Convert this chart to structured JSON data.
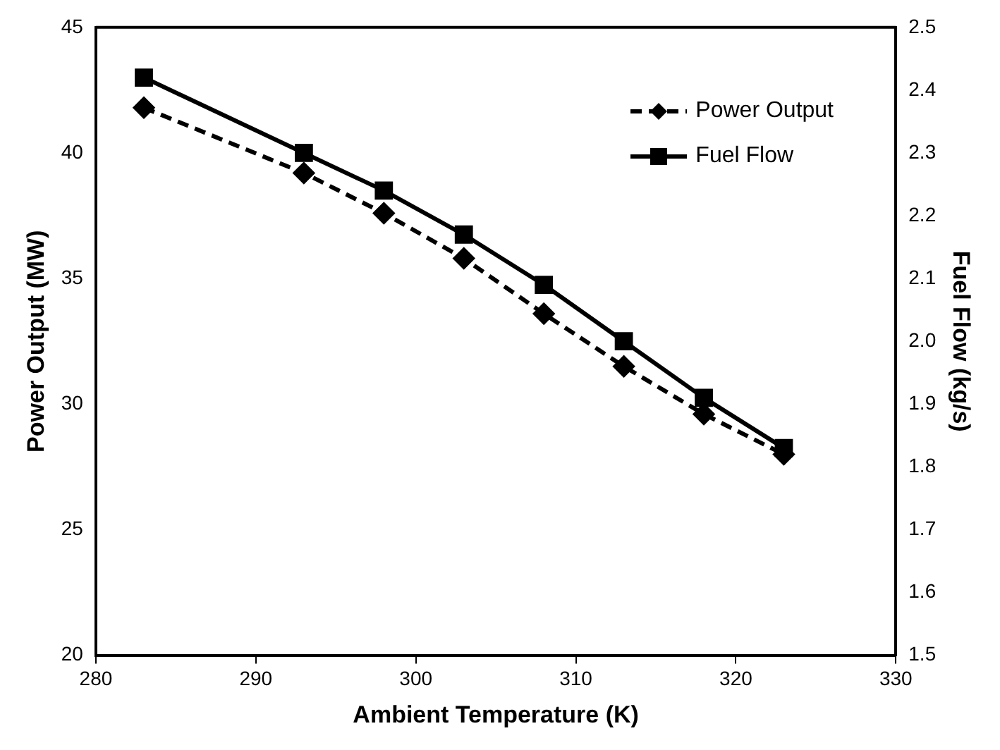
{
  "chart_data": {
    "type": "line",
    "xlabel": "Ambient Temperature (K)",
    "ylabel": "Power Output (MW)",
    "y2label": "Fuel Flow (kg/s)",
    "x": [
      283,
      293,
      298,
      303,
      308,
      313,
      318,
      323
    ],
    "series": [
      {
        "name": "Power Output",
        "color": "#000000",
        "marker": "diamond",
        "line_style": "dashed",
        "values": [
          41.8,
          39.2,
          37.6,
          35.8,
          33.6,
          31.5,
          29.6,
          28.0
        ]
      },
      {
        "name": "Fuel Flow",
        "color": "#000000",
        "marker": "square",
        "line_style": "solid",
        "axis": "y2",
        "values": [
          2.42,
          2.3,
          2.24,
          2.17,
          2.09,
          2.0,
          1.91,
          1.83
        ]
      }
    ],
    "xlim": [
      280,
      330
    ],
    "xticks": [
      280,
      290,
      300,
      310,
      320,
      330
    ],
    "ylim": [
      20,
      45
    ],
    "yticks": [
      20,
      25,
      30,
      35,
      40,
      45
    ],
    "y2lim": [
      1.5,
      2.5
    ],
    "y2ticks": [
      1.5,
      1.6,
      1.7,
      1.8,
      1.9,
      {
        "value": 2,
        "label": "2.0"
      },
      2.1,
      2.2,
      2.3,
      2.4,
      2.5
    ],
    "grid": false,
    "legend": "top right"
  }
}
